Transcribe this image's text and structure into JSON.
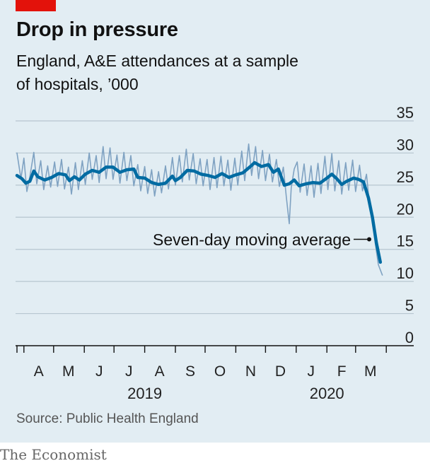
{
  "header": {
    "title": "Drop in pressure",
    "subtitle": "England, A&E attendances at a sample of hospitals, ’000"
  },
  "source": "Source: Public Health England",
  "brand": "The Economist",
  "colors": {
    "background": "#e2edf3",
    "accent": "#e3120b",
    "daily_series": "#7fa2c2",
    "average_series": "#006ba2",
    "grid": "#b7c6d0"
  },
  "chart_data": {
    "type": "line",
    "title": "Drop in pressure",
    "subtitle": "England, A&E attendances at a sample of hospitals, ’000",
    "ylim": [
      0,
      35
    ],
    "yticks": [
      0,
      5,
      10,
      15,
      20,
      25,
      30,
      35
    ],
    "y_axis_side": "right",
    "xlim": [
      "2019-03-25",
      "2020-03-28"
    ],
    "month_labels": [
      "A",
      "M",
      "J",
      "J",
      "A",
      "S",
      "O",
      "N",
      "D",
      "J",
      "F",
      "M"
    ],
    "year_labels": [
      "2019",
      "2020"
    ],
    "grid": true,
    "annotation": "Seven-day moving average",
    "series": [
      {
        "name": "Seven-day moving average",
        "style": "thick",
        "points": [
          [
            "2019-03-25",
            26.5
          ],
          [
            "2019-03-30",
            26.0
          ],
          [
            "2019-04-03",
            25.3
          ],
          [
            "2019-04-07",
            25.6
          ],
          [
            "2019-04-11",
            27.2
          ],
          [
            "2019-04-15",
            26.3
          ],
          [
            "2019-04-22",
            25.8
          ],
          [
            "2019-04-29",
            26.2
          ],
          [
            "2019-05-06",
            26.8
          ],
          [
            "2019-05-13",
            26.6
          ],
          [
            "2019-05-17",
            25.7
          ],
          [
            "2019-05-22",
            26.3
          ],
          [
            "2019-05-27",
            25.8
          ],
          [
            "2019-06-02",
            26.7
          ],
          [
            "2019-06-09",
            27.3
          ],
          [
            "2019-06-16",
            27.0
          ],
          [
            "2019-06-23",
            27.8
          ],
          [
            "2019-06-30",
            27.8
          ],
          [
            "2019-07-07",
            27.0
          ],
          [
            "2019-07-14",
            27.4
          ],
          [
            "2019-07-21",
            27.5
          ],
          [
            "2019-07-25",
            26.2
          ],
          [
            "2019-08-01",
            26.1
          ],
          [
            "2019-08-08",
            25.4
          ],
          [
            "2019-08-15",
            25.1
          ],
          [
            "2019-08-22",
            25.3
          ],
          [
            "2019-08-29",
            26.4
          ],
          [
            "2019-09-01",
            25.7
          ],
          [
            "2019-09-06",
            26.2
          ],
          [
            "2019-09-13",
            27.3
          ],
          [
            "2019-09-20",
            27.2
          ],
          [
            "2019-09-27",
            26.7
          ],
          [
            "2019-10-04",
            26.5
          ],
          [
            "2019-10-11",
            26.2
          ],
          [
            "2019-10-18",
            26.8
          ],
          [
            "2019-10-25",
            26.2
          ],
          [
            "2019-11-01",
            26.6
          ],
          [
            "2019-11-08",
            26.9
          ],
          [
            "2019-11-15",
            27.8
          ],
          [
            "2019-11-20",
            28.5
          ],
          [
            "2019-11-27",
            27.9
          ],
          [
            "2019-12-04",
            28.2
          ],
          [
            "2019-12-09",
            27.0
          ],
          [
            "2019-12-14",
            27.5
          ],
          [
            "2019-12-20",
            25.0
          ],
          [
            "2019-12-25",
            25.2
          ],
          [
            "2019-12-30",
            25.8
          ],
          [
            "2020-01-04",
            24.9
          ],
          [
            "2020-01-11",
            25.2
          ],
          [
            "2020-01-18",
            25.4
          ],
          [
            "2020-01-25",
            25.3
          ],
          [
            "2020-02-01",
            26.1
          ],
          [
            "2020-02-06",
            26.7
          ],
          [
            "2020-02-11",
            26.0
          ],
          [
            "2020-02-16",
            25.1
          ],
          [
            "2020-02-21",
            25.6
          ],
          [
            "2020-02-28",
            26.1
          ],
          [
            "2020-03-04",
            25.9
          ],
          [
            "2020-03-09",
            25.5
          ],
          [
            "2020-03-14",
            23.0
          ],
          [
            "2020-03-18",
            20.0
          ],
          [
            "2020-03-22",
            16.0
          ],
          [
            "2020-03-26",
            13.0
          ]
        ]
      },
      {
        "name": "Daily",
        "style": "thin",
        "points": [
          [
            "2019-03-25",
            30.0
          ],
          [
            "2019-03-29",
            26.0
          ],
          [
            "2019-04-01",
            29.2
          ],
          [
            "2019-04-04",
            24.0
          ],
          [
            "2019-04-07",
            26.3
          ],
          [
            "2019-04-11",
            30.1
          ],
          [
            "2019-04-14",
            25.2
          ],
          [
            "2019-04-18",
            28.8
          ],
          [
            "2019-04-21",
            24.3
          ],
          [
            "2019-04-25",
            28.0
          ],
          [
            "2019-04-28",
            24.7
          ],
          [
            "2019-05-02",
            28.6
          ],
          [
            "2019-05-05",
            24.8
          ],
          [
            "2019-05-09",
            29.0
          ],
          [
            "2019-05-12",
            24.4
          ],
          [
            "2019-05-16",
            27.8
          ],
          [
            "2019-05-19",
            23.6
          ],
          [
            "2019-05-23",
            28.5
          ],
          [
            "2019-05-26",
            24.3
          ],
          [
            "2019-05-30",
            28.8
          ],
          [
            "2019-06-02",
            25.1
          ],
          [
            "2019-06-06",
            30.0
          ],
          [
            "2019-06-09",
            25.9
          ],
          [
            "2019-06-13",
            29.6
          ],
          [
            "2019-06-16",
            25.4
          ],
          [
            "2019-06-20",
            31.0
          ],
          [
            "2019-06-23",
            26.0
          ],
          [
            "2019-06-27",
            30.8
          ],
          [
            "2019-06-30",
            25.9
          ],
          [
            "2019-07-04",
            29.7
          ],
          [
            "2019-07-07",
            25.3
          ],
          [
            "2019-07-11",
            30.1
          ],
          [
            "2019-07-14",
            25.7
          ],
          [
            "2019-07-18",
            29.6
          ],
          [
            "2019-07-21",
            24.9
          ],
          [
            "2019-07-25",
            28.2
          ],
          [
            "2019-07-28",
            24.1
          ],
          [
            "2019-08-01",
            27.9
          ],
          [
            "2019-08-04",
            23.7
          ],
          [
            "2019-08-08",
            27.4
          ],
          [
            "2019-08-11",
            23.3
          ],
          [
            "2019-08-15",
            27.1
          ],
          [
            "2019-08-18",
            23.8
          ],
          [
            "2019-08-22",
            28.0
          ],
          [
            "2019-08-25",
            24.4
          ],
          [
            "2019-08-29",
            29.3
          ],
          [
            "2019-09-01",
            25.0
          ],
          [
            "2019-09-05",
            29.6
          ],
          [
            "2019-09-08",
            25.5
          ],
          [
            "2019-09-12",
            30.6
          ],
          [
            "2019-09-15",
            25.8
          ],
          [
            "2019-09-19",
            29.9
          ],
          [
            "2019-09-22",
            25.2
          ],
          [
            "2019-09-26",
            29.1
          ],
          [
            "2019-09-29",
            24.9
          ],
          [
            "2019-10-03",
            29.0
          ],
          [
            "2019-10-06",
            24.3
          ],
          [
            "2019-10-10",
            29.3
          ],
          [
            "2019-10-13",
            24.6
          ],
          [
            "2019-10-17",
            29.5
          ],
          [
            "2019-10-20",
            24.9
          ],
          [
            "2019-10-24",
            28.9
          ],
          [
            "2019-10-27",
            24.2
          ],
          [
            "2019-10-31",
            29.2
          ],
          [
            "2019-11-03",
            25.0
          ],
          [
            "2019-11-07",
            30.3
          ],
          [
            "2019-11-10",
            25.7
          ],
          [
            "2019-11-14",
            31.4
          ],
          [
            "2019-11-17",
            26.5
          ],
          [
            "2019-11-21",
            31.0
          ],
          [
            "2019-11-24",
            26.0
          ],
          [
            "2019-11-28",
            30.4
          ],
          [
            "2019-12-01",
            25.7
          ],
          [
            "2019-12-05",
            29.8
          ],
          [
            "2019-12-08",
            25.5
          ],
          [
            "2019-12-12",
            29.0
          ],
          [
            "2019-12-15",
            24.8
          ],
          [
            "2019-12-19",
            27.8
          ],
          [
            "2019-12-22",
            23.2
          ],
          [
            "2019-12-25",
            19.0
          ],
          [
            "2019-12-27",
            24.6
          ],
          [
            "2019-12-30",
            27.5
          ],
          [
            "2020-01-02",
            28.6
          ],
          [
            "2020-01-05",
            23.9
          ],
          [
            "2020-01-09",
            28.3
          ],
          [
            "2020-01-12",
            23.4
          ],
          [
            "2020-01-16",
            28.0
          ],
          [
            "2020-01-19",
            23.1
          ],
          [
            "2020-01-23",
            28.4
          ],
          [
            "2020-01-26",
            23.7
          ],
          [
            "2020-01-30",
            29.5
          ],
          [
            "2020-02-02",
            24.3
          ],
          [
            "2020-02-06",
            29.9
          ],
          [
            "2020-02-09",
            24.1
          ],
          [
            "2020-02-13",
            28.8
          ],
          [
            "2020-02-16",
            23.6
          ],
          [
            "2020-02-20",
            28.5
          ],
          [
            "2020-02-23",
            24.2
          ],
          [
            "2020-02-27",
            28.9
          ],
          [
            "2020-03-01",
            24.0
          ],
          [
            "2020-03-05",
            28.1
          ],
          [
            "2020-03-08",
            24.1
          ],
          [
            "2020-03-12",
            26.7
          ],
          [
            "2020-03-15",
            22.0
          ],
          [
            "2020-03-18",
            19.8
          ],
          [
            "2020-03-21",
            15.8
          ],
          [
            "2020-03-24",
            12.6
          ],
          [
            "2020-03-28",
            11.0
          ]
        ]
      }
    ]
  }
}
